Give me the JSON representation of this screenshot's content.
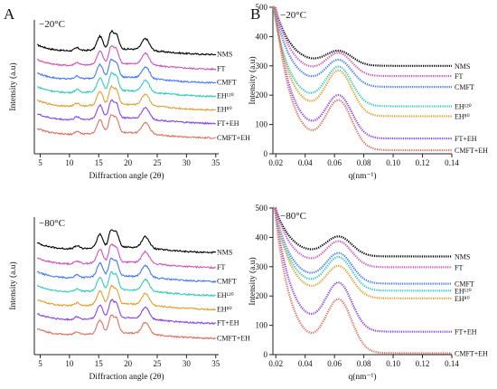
{
  "panel_letters": {
    "left": "A",
    "right": "B"
  },
  "chart_data": [
    {
      "type": "line",
      "panel": "A",
      "temperature_label": "−20°C",
      "xlabel": "Diffraction angle (2θ)",
      "ylabel": "Intensity (a.u)",
      "xlim": [
        4,
        35.5
      ],
      "xticks": [
        5,
        10,
        15,
        20,
        25,
        30,
        35
      ],
      "y_tick_labels": false,
      "peak_positions_2theta": [
        15.2,
        17.1,
        18.0,
        23.0
      ],
      "series": [
        {
          "name": "NMS",
          "color": "#000000",
          "offset": 1.0
        },
        {
          "name": "FT",
          "color": "#cc55bb",
          "offset": 0.86
        },
        {
          "name": "CMFT",
          "color": "#4477ff",
          "offset": 0.73
        },
        {
          "name": "EH¹²⁰",
          "color": "#33ccbb",
          "offset": 0.6
        },
        {
          "name": "EH⁸⁰",
          "color": "#e0a030",
          "offset": 0.47
        },
        {
          "name": "FT+EH",
          "color": "#8844ee",
          "offset": 0.34
        },
        {
          "name": "CMFT+EH",
          "color": "#e07060",
          "offset": 0.2
        }
      ]
    },
    {
      "type": "line",
      "panel": "A",
      "temperature_label": "−80°C",
      "xlabel": "Diffraction angle (2θ)",
      "ylabel": "Intensity (a.u)",
      "xlim": [
        4,
        35.5
      ],
      "xticks": [
        5,
        10,
        15,
        20,
        25,
        30,
        35
      ],
      "y_tick_labels": false,
      "peak_positions_2theta": [
        15.2,
        17.1,
        18.0,
        23.0
      ],
      "series": [
        {
          "name": "NMS",
          "color": "#000000",
          "offset": 1.0
        },
        {
          "name": "FT",
          "color": "#cc55bb",
          "offset": 0.86
        },
        {
          "name": "CMFT",
          "color": "#4477ff",
          "offset": 0.73
        },
        {
          "name": "EH¹²⁰",
          "color": "#33ccbb",
          "offset": 0.6
        },
        {
          "name": "EH⁸⁰",
          "color": "#e0a030",
          "offset": 0.47
        },
        {
          "name": "FT+EH",
          "color": "#8844ee",
          "offset": 0.34
        },
        {
          "name": "CMFT+EH",
          "color": "#e07060",
          "offset": 0.2
        }
      ]
    },
    {
      "type": "line",
      "panel": "B",
      "temperature_label": "−20°C",
      "xlabel": "q(nm⁻¹)",
      "ylabel": "Intensity (a.u)",
      "xlim": [
        0.018,
        0.14
      ],
      "ylim": [
        0,
        500
      ],
      "xticks": [
        0.02,
        0.04,
        0.06,
        0.08,
        0.1,
        0.12,
        0.14
      ],
      "yticks": [
        0,
        100,
        200,
        300,
        400,
        500
      ],
      "series": [
        {
          "name": "NMS",
          "color": "#000000",
          "baseline": 300,
          "peak_height": 48,
          "low_q_rise": 190
        },
        {
          "name": "FT",
          "color": "#cc55bb",
          "baseline": 265,
          "peak_height": 75,
          "low_q_rise": 230
        },
        {
          "name": "CMFT",
          "color": "#4477ff",
          "baseline": 228,
          "peak_height": 88,
          "low_q_rise": 250
        },
        {
          "name": "EH¹²⁰",
          "color": "#33ccbb",
          "baseline": 162,
          "peak_height": 130,
          "low_q_rise": 290
        },
        {
          "name": "EH⁸⁰",
          "color": "#e0a030",
          "baseline": 128,
          "peak_height": 150,
          "low_q_rise": 330
        },
        {
          "name": "FT+EH",
          "color": "#8844ee",
          "baseline": 52,
          "peak_height": 140,
          "low_q_rise": 420
        },
        {
          "name": "CMFT+EH",
          "color": "#e07060",
          "baseline": 12,
          "peak_height": 162,
          "low_q_rise": 470
        }
      ]
    },
    {
      "type": "line",
      "panel": "B",
      "temperature_label": "−80°C",
      "xlabel": "q(nm⁻¹)",
      "ylabel": "Intensity (a.u)",
      "xlim": [
        0.018,
        0.14
      ],
      "ylim": [
        0,
        500
      ],
      "xticks": [
        0.02,
        0.04,
        0.06,
        0.08,
        0.1,
        0.12,
        0.14
      ],
      "yticks": [
        0,
        100,
        200,
        300,
        400,
        500
      ],
      "series": [
        {
          "name": "NMS",
          "color": "#000000",
          "baseline": 335,
          "peak_height": 65,
          "low_q_rise": 160
        },
        {
          "name": "FT",
          "color": "#cc55bb",
          "baseline": 298,
          "peak_height": 85,
          "low_q_rise": 200
        },
        {
          "name": "CMFT",
          "color": "#4477ff",
          "baseline": 242,
          "peak_height": 100,
          "low_q_rise": 240
        },
        {
          "name": "EH¹²⁰",
          "color": "#33ccbb",
          "baseline": 218,
          "peak_height": 110,
          "low_q_rise": 260
        },
        {
          "name": "EH⁸⁰",
          "color": "#e0a030",
          "baseline": 192,
          "peak_height": 105,
          "low_q_rise": 290
        },
        {
          "name": "FT+EH",
          "color": "#8844ee",
          "baseline": 78,
          "peak_height": 160,
          "low_q_rise": 400
        },
        {
          "name": "CMFT+EH",
          "color": "#e07060",
          "baseline": 5,
          "peak_height": 175,
          "low_q_rise": 460
        }
      ]
    }
  ]
}
